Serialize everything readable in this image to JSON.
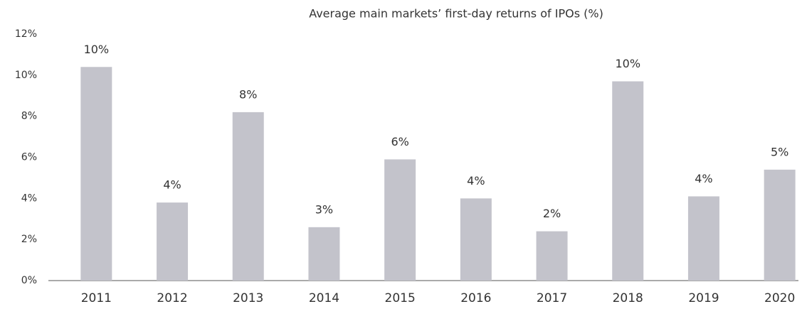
{
  "chart_data": {
    "type": "bar",
    "title": "Average main markets’ first-day returns of IPOs (%)",
    "categories": [
      "2011",
      "2012",
      "2013",
      "2014",
      "2015",
      "2016",
      "2017",
      "2018",
      "2019",
      "2020"
    ],
    "values": [
      10.4,
      3.8,
      8.2,
      2.6,
      5.9,
      4.0,
      2.4,
      9.7,
      4.1,
      5.4
    ],
    "value_labels": [
      "10%",
      "4%",
      "8%",
      "3%",
      "6%",
      "4%",
      "2%",
      "10%",
      "4%",
      "5%"
    ],
    "color": "#c3c3cb",
    "ylim": [
      0,
      12
    ],
    "yticks": [
      {
        "value": 0,
        "label": "0%"
      },
      {
        "value": 2,
        "label": "2%"
      },
      {
        "value": 4,
        "label": "4%"
      },
      {
        "value": 6,
        "label": "6%"
      },
      {
        "value": 8,
        "label": "8%"
      },
      {
        "value": 10,
        "label": "10%"
      },
      {
        "value": 12,
        "label": "12%"
      }
    ],
    "grid": false
  }
}
